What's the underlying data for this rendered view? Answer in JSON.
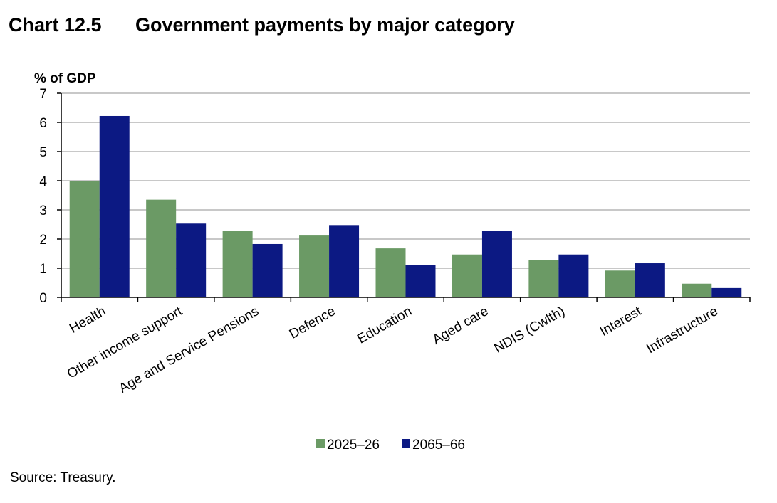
{
  "header": {
    "chart_number": "Chart 12.5",
    "title": "Government payments by major category"
  },
  "source_note": "Source: Treasury.",
  "colors": {
    "series_2025": "#6b9a65",
    "series_2065": "#0c1983",
    "grid": "#c8c8c8",
    "axis": "#000000"
  },
  "chart_data": {
    "type": "bar",
    "title": "Government payments by major category",
    "ylabel": "% of GDP",
    "xlabel": "",
    "ylim": [
      0,
      7
    ],
    "yticks": [
      0,
      1,
      2,
      3,
      4,
      5,
      6,
      7
    ],
    "grid": true,
    "legend_position": "bottom",
    "categories": [
      "Health",
      "Other income support",
      "Age and Service Pensions",
      "Defence",
      "Education",
      "Aged care",
      "NDIS (Cwlth)",
      "Interest",
      "Infrastructure"
    ],
    "series": [
      {
        "name": "2025–26",
        "values": [
          4.0,
          3.35,
          2.28,
          2.12,
          1.68,
          1.47,
          1.27,
          0.92,
          0.47
        ]
      },
      {
        "name": "2065–66",
        "values": [
          6.22,
          2.53,
          1.83,
          2.48,
          1.12,
          2.28,
          1.47,
          1.17,
          0.32
        ]
      }
    ]
  }
}
